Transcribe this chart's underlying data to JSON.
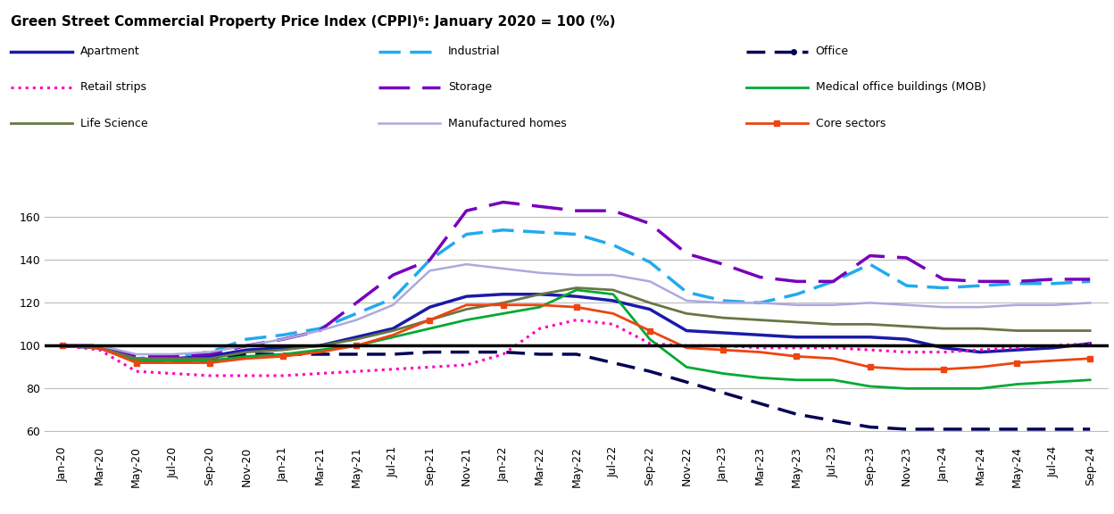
{
  "title": "Green Street Commercial Property Price Index (CPPI)⁶: January 2020 = 100 (%)",
  "x_labels": [
    "Jan-20",
    "Mar-20",
    "May-20",
    "Jul-20",
    "Sep-20",
    "Nov-20",
    "Jan-21",
    "Mar-21",
    "May-21",
    "Jul-21",
    "Sep-21",
    "Nov-21",
    "Jan-22",
    "Mar-22",
    "May-22",
    "Jul-22",
    "Sep-22",
    "Nov-22",
    "Jan-23",
    "Mar-23",
    "May-23",
    "Jul-23",
    "Sep-23",
    "Nov-23",
    "Jan-24",
    "Mar-24",
    "May-24",
    "Jul-24",
    "Sep-24"
  ],
  "ylim": [
    55,
    175
  ],
  "yticks": [
    60,
    80,
    100,
    120,
    140,
    160
  ],
  "series": {
    "Apartment": {
      "color": "#1a1aaa",
      "linestyle": "solid",
      "linewidth": 2.5,
      "marker": null,
      "dashes": null,
      "values": [
        100,
        99,
        93,
        94,
        95,
        98,
        99,
        100,
        104,
        108,
        118,
        123,
        124,
        124,
        123,
        121,
        117,
        107,
        106,
        105,
        104,
        104,
        104,
        103,
        99,
        97,
        98,
        99,
        101
      ]
    },
    "Industrial": {
      "color": "#22aaee",
      "linestyle": "dashed",
      "linewidth": 2.5,
      "marker": null,
      "dashes": [
        7,
        3
      ],
      "values": [
        100,
        99,
        94,
        95,
        97,
        103,
        105,
        108,
        115,
        122,
        140,
        152,
        154,
        153,
        152,
        147,
        139,
        125,
        121,
        120,
        124,
        130,
        138,
        128,
        127,
        128,
        129,
        129,
        130
      ]
    },
    "Office": {
      "color": "#000055",
      "linestyle": "dashed",
      "linewidth": 2.5,
      "marker": "o",
      "markersize": 4,
      "dashes": [
        6,
        3
      ],
      "values": [
        100,
        99,
        93,
        93,
        93,
        96,
        96,
        96,
        96,
        96,
        97,
        97,
        97,
        96,
        96,
        92,
        88,
        83,
        78,
        73,
        68,
        65,
        62,
        61,
        61,
        61,
        61,
        61,
        61
      ]
    },
    "Retail strips": {
      "color": "#ff00bb",
      "linestyle": "dotted",
      "linewidth": 2.2,
      "marker": null,
      "dashes": null,
      "values": [
        100,
        98,
        88,
        87,
        86,
        86,
        86,
        87,
        88,
        89,
        90,
        91,
        96,
        108,
        112,
        110,
        101,
        100,
        100,
        99,
        99,
        99,
        98,
        97,
        97,
        98,
        99,
        100,
        101
      ]
    },
    "Storage": {
      "color": "#7700bb",
      "linestyle": "dashed",
      "linewidth": 2.5,
      "marker": null,
      "dashes": [
        10,
        4
      ],
      "values": [
        100,
        100,
        95,
        95,
        96,
        100,
        103,
        107,
        120,
        133,
        140,
        163,
        167,
        165,
        163,
        163,
        157,
        143,
        138,
        132,
        130,
        130,
        142,
        141,
        131,
        130,
        130,
        131,
        131
      ]
    },
    "Medical office buildings (MOB)": {
      "color": "#00aa33",
      "linestyle": "solid",
      "linewidth": 2.0,
      "marker": null,
      "dashes": null,
      "values": [
        100,
        99,
        93,
        93,
        93,
        95,
        96,
        98,
        100,
        104,
        108,
        112,
        115,
        118,
        126,
        124,
        103,
        90,
        87,
        85,
        84,
        84,
        81,
        80,
        80,
        80,
        82,
        83,
        84
      ]
    },
    "Life Science": {
      "color": "#667744",
      "linestyle": "solid",
      "linewidth": 2.0,
      "marker": null,
      "dashes": null,
      "values": [
        100,
        99,
        94,
        94,
        94,
        97,
        98,
        100,
        103,
        107,
        112,
        117,
        120,
        124,
        127,
        126,
        120,
        115,
        113,
        112,
        111,
        110,
        110,
        109,
        108,
        108,
        107,
        107,
        107
      ]
    },
    "Manufactured homes": {
      "color": "#aaaadd",
      "linestyle": "solid",
      "linewidth": 1.8,
      "marker": null,
      "dashes": null,
      "values": [
        100,
        100,
        96,
        96,
        97,
        100,
        103,
        107,
        112,
        119,
        135,
        138,
        136,
        134,
        133,
        133,
        130,
        121,
        120,
        120,
        119,
        119,
        120,
        119,
        118,
        118,
        119,
        119,
        120
      ]
    },
    "Core sectors": {
      "color": "#ee4411",
      "linestyle": "solid",
      "linewidth": 2.0,
      "marker": "s",
      "markersize": 5,
      "dashes": null,
      "values": [
        100,
        99,
        92,
        92,
        92,
        94,
        95,
        97,
        100,
        105,
        112,
        119,
        119,
        119,
        118,
        115,
        107,
        99,
        98,
        97,
        95,
        94,
        90,
        89,
        89,
        90,
        92,
        93,
        94
      ]
    }
  },
  "legend_order": [
    "Apartment",
    "Industrial",
    "Office",
    "Retail strips",
    "Storage",
    "Medical office buildings (MOB)",
    "Life Science",
    "Manufactured homes",
    "Core sectors"
  ],
  "background_color": "#ffffff",
  "grid_color": "#bbbbbb",
  "title_fontsize": 11,
  "tick_fontsize": 9,
  "legend_fontsize": 9
}
